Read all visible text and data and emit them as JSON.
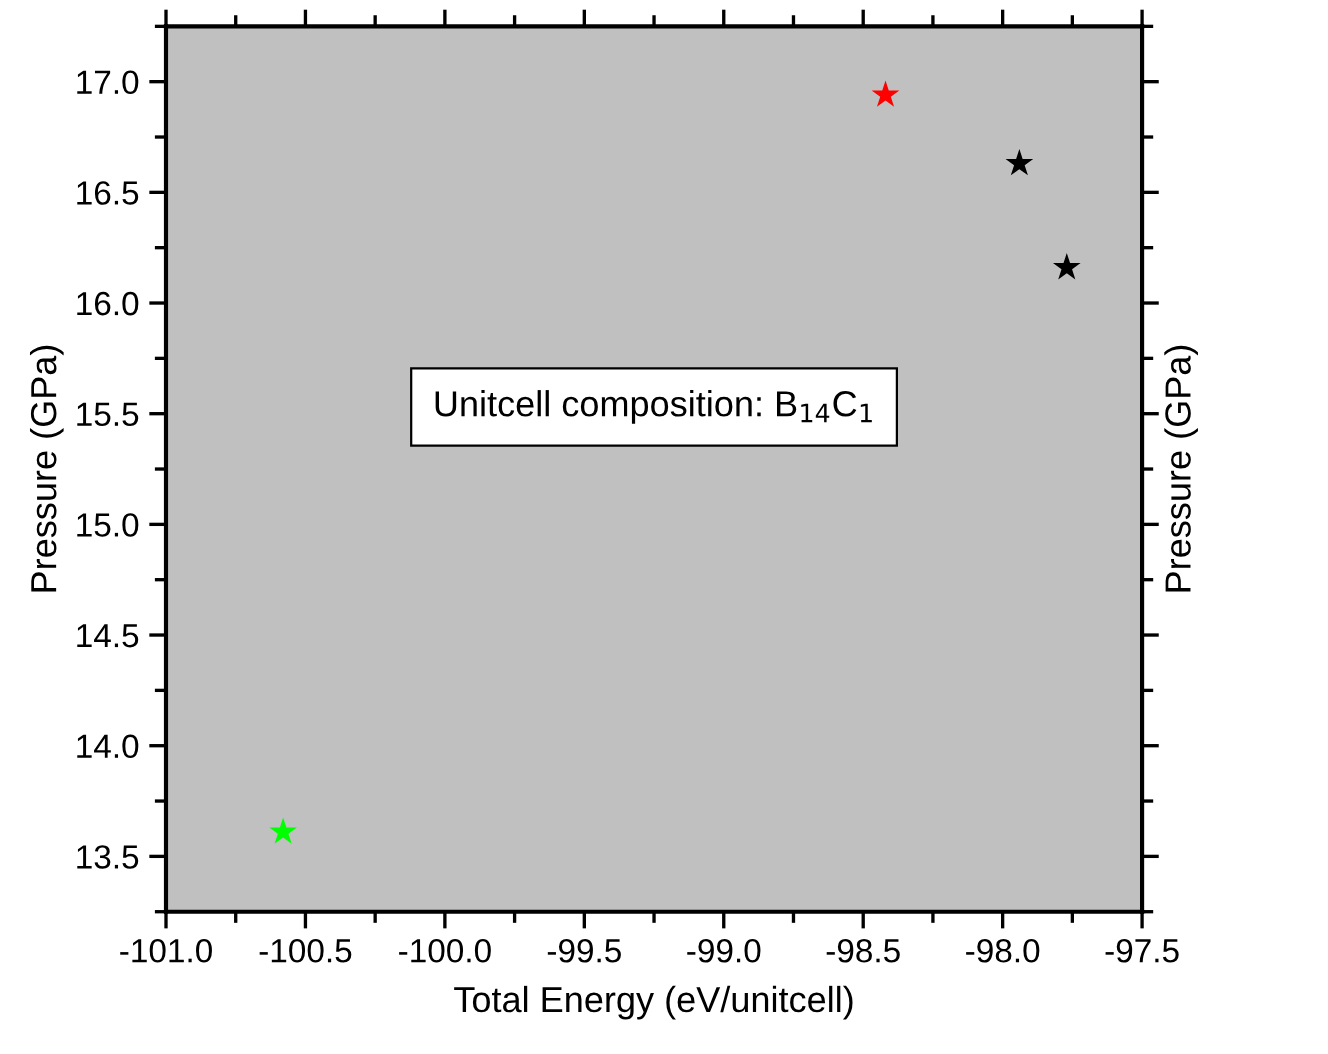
{
  "chart_data": {
    "type": "scatter",
    "xlabel": "Total Energy (eV/unitcell)",
    "ylabel": "Pressure (GPa)",
    "y2label": "Pressure (GPa)",
    "annotations": [
      "Unitcell composition: B$_{14}$C$_{1}$"
    ],
    "x": [
      -98.42,
      -97.94,
      -97.77,
      -100.58
    ],
    "values": [
      16.94,
      16.63,
      16.16,
      13.61
    ],
    "colors": [
      "#ff0000",
      "#000000",
      "#000000",
      "#00ff00"
    ],
    "marker": "star",
    "xlim": [
      -101.0,
      -97.5
    ],
    "xticks": [
      {
        "value": -101,
        "label": "-101.0"
      },
      -100.5,
      {
        "value": -100,
        "label": "-100.0"
      },
      -99.5,
      {
        "value": -99,
        "label": "-99.0"
      },
      -98.5,
      {
        "value": -98,
        "label": "-98.0"
      },
      -97.5
    ],
    "ylim": [
      13.25,
      17.25
    ],
    "yticks": [
      13.5,
      {
        "value": 14,
        "label": "14.0"
      },
      14.5,
      {
        "value": 15,
        "label": "15.0"
      },
      15.5,
      {
        "value": 16,
        "label": "16.0"
      },
      16.5,
      {
        "value": 17,
        "label": "17.0"
      }
    ],
    "grid": false,
    "legend": false
  }
}
